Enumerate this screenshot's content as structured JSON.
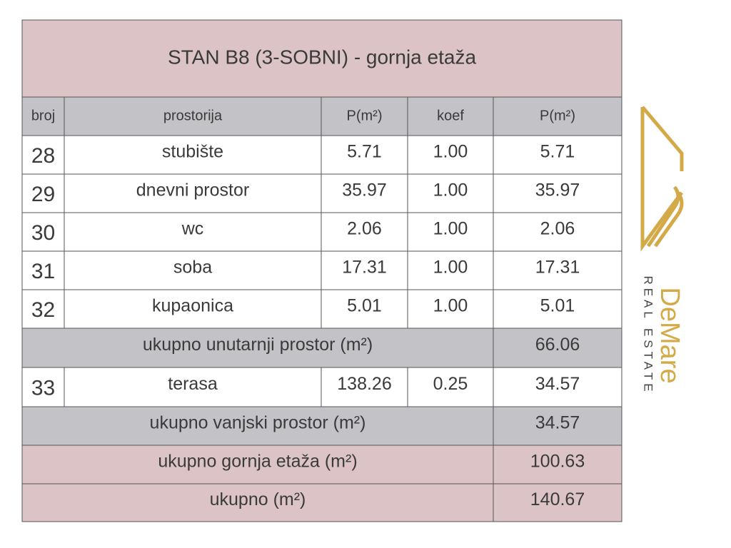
{
  "title": "STAN B8 (3-SOBNI) - gornja etaža",
  "table": {
    "header": [
      "broj",
      "prostorija",
      "P(m²)",
      "koef",
      "P(m²)"
    ],
    "rows": [
      {
        "cells": [
          "28",
          "stubište",
          "5.71",
          "1.00",
          "5.71"
        ]
      },
      {
        "cells": [
          "29",
          "dnevni prostor",
          "35.97",
          "1.00",
          "35.97"
        ]
      },
      {
        "cells": [
          "30",
          "wc",
          "2.06",
          "1.00",
          "2.06"
        ]
      },
      {
        "cells": [
          "31",
          "soba",
          "17.31",
          "1.00",
          "17.31"
        ]
      },
      {
        "cells": [
          "32",
          "kupaonica",
          "5.01",
          "1.00",
          "5.01"
        ]
      },
      {
        "label": "ukupno unutarnji prostor (m²)",
        "value": "66.06",
        "shade": "#c3c3c7"
      },
      {
        "cells": [
          "33",
          "terasa",
          "138.26",
          "0.25",
          "34.57"
        ]
      },
      {
        "label": "ukupno vanjski prostor (m²)",
        "value": "34.57",
        "shade": "#c3c3c7"
      },
      {
        "label": "ukupno gornja etaža (m²)",
        "value": "100.63",
        "shade": "#dcc4c6"
      },
      {
        "label": "ukupno (m²)",
        "value": "140.67",
        "shade": "#dcc4c6"
      }
    ]
  },
  "logo": {
    "name": "DeMare",
    "tagline": "REAL ESTATE"
  }
}
